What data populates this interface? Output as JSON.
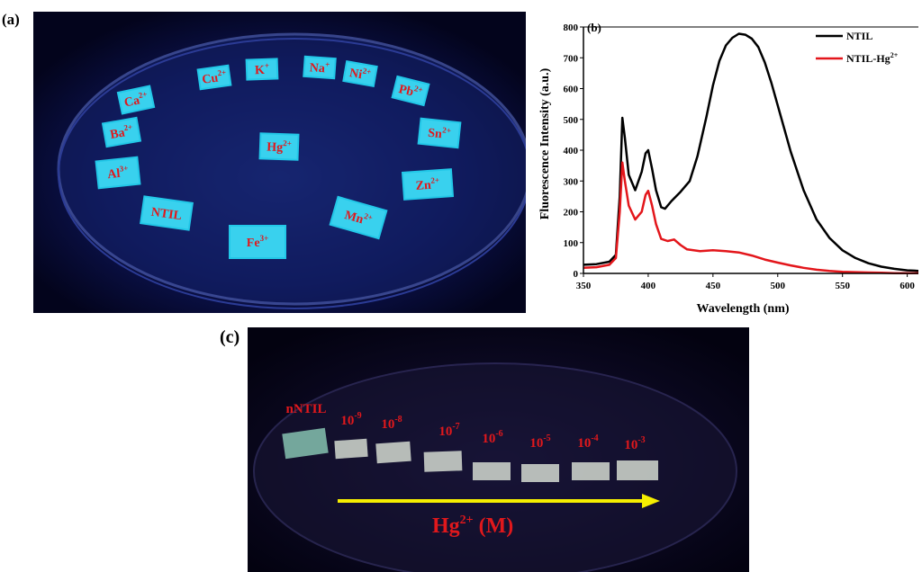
{
  "panel_a": {
    "label": "(a)",
    "ions": [
      {
        "text": "Cu",
        "sup": "2+"
      },
      {
        "text": "K",
        "sup": "+"
      },
      {
        "text": "Na",
        "sup": "+"
      },
      {
        "text": "Ni",
        "sup": "2+"
      },
      {
        "text": "Pb",
        "sup": "2+"
      },
      {
        "text": "Ca",
        "sup": "2+"
      },
      {
        "text": "Ba",
        "sup": "2+"
      },
      {
        "text": "Hg",
        "sup": "2+"
      },
      {
        "text": "Sn",
        "sup": "2+"
      },
      {
        "text": "Al",
        "sup": "3+"
      },
      {
        "text": "Zn",
        "sup": "2+"
      },
      {
        "text": "NTIL",
        "sup": ""
      },
      {
        "text": "Mn",
        "sup": "2+"
      },
      {
        "text": "Fe",
        "sup": "3+"
      }
    ],
    "colors": {
      "background": "#05072a",
      "tile": "#22c8e8",
      "label": "#e0181c"
    }
  },
  "panel_b": {
    "label": "(b)",
    "chart_data": {
      "type": "line",
      "xlabel": "Wavelength (nm)",
      "ylabel": "Fluorescence Intensity (a.u.)",
      "xlim": [
        350,
        610
      ],
      "ylim": [
        0,
        800
      ],
      "xticks": [
        350,
        400,
        450,
        500,
        550,
        600
      ],
      "yticks": [
        0,
        100,
        200,
        300,
        400,
        500,
        600,
        700,
        800
      ],
      "grid": false,
      "legend_position": "top-right",
      "series": [
        {
          "name": "NTIL",
          "color": "#000000",
          "x": [
            350,
            360,
            370,
            375,
            378,
            380,
            382,
            385,
            390,
            395,
            398,
            400,
            403,
            406,
            410,
            413,
            418,
            425,
            432,
            438,
            445,
            450,
            455,
            460,
            465,
            470,
            475,
            480,
            485,
            490,
            495,
            500,
            505,
            510,
            520,
            530,
            540,
            550,
            560,
            570,
            580,
            590,
            600,
            610
          ],
          "y": [
            28,
            30,
            38,
            60,
            250,
            505,
            440,
            320,
            270,
            330,
            390,
            400,
            340,
            270,
            215,
            210,
            235,
            265,
            300,
            380,
            510,
            610,
            690,
            740,
            765,
            778,
            775,
            762,
            735,
            685,
            620,
            545,
            470,
            395,
            270,
            175,
            115,
            75,
            50,
            33,
            22,
            15,
            10,
            8
          ]
        },
        {
          "name": "NTIL-Hg2+",
          "label_text": "NTIL-Hg",
          "label_sup": "2+",
          "color": "#e3161b",
          "x": [
            350,
            360,
            370,
            375,
            378,
            380,
            382,
            385,
            390,
            395,
            398,
            400,
            403,
            406,
            410,
            415,
            420,
            425,
            430,
            440,
            450,
            460,
            470,
            480,
            490,
            500,
            510,
            520,
            530,
            540,
            550,
            560,
            570,
            580,
            590,
            600,
            610
          ],
          "y": [
            18,
            20,
            28,
            50,
            200,
            360,
            300,
            220,
            175,
            200,
            255,
            268,
            220,
            160,
            112,
            105,
            110,
            92,
            78,
            72,
            75,
            72,
            68,
            58,
            45,
            35,
            26,
            18,
            12,
            8,
            5,
            4,
            3,
            2,
            1,
            1,
            1
          ]
        }
      ]
    }
  },
  "panel_c": {
    "label": "(c)",
    "labels": [
      {
        "text": "nNTIL",
        "sup": ""
      },
      {
        "text": "10",
        "sup": "-9"
      },
      {
        "text": "10",
        "sup": "-8"
      },
      {
        "text": "10",
        "sup": "-7"
      },
      {
        "text": "10",
        "sup": "-6"
      },
      {
        "text": "10",
        "sup": "-5"
      },
      {
        "text": "10",
        "sup": "-4"
      },
      {
        "text": "10",
        "sup": "-3"
      }
    ],
    "axis_label": {
      "text1": "Hg",
      "sup": "2+",
      "text2": " (M)"
    },
    "colors": {
      "background": "#07061c",
      "arrow": "#f5ee00",
      "label": "#e0181c",
      "tile": "#c9cfc8"
    }
  }
}
